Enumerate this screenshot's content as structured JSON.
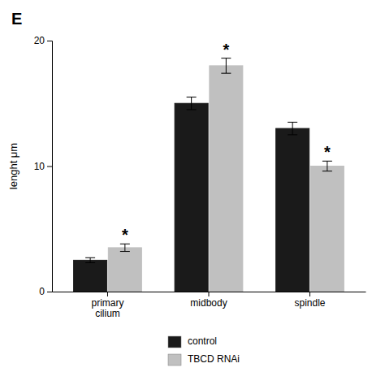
{
  "chart_data": {
    "type": "bar",
    "title": "E",
    "categories": [
      "primary\ncilium",
      "midbody",
      "spindle"
    ],
    "series": [
      {
        "name": "control",
        "color": "#1a1a1a",
        "values": [
          2.5,
          15.0,
          13.0
        ],
        "errors": [
          0.2,
          0.5,
          0.5
        ]
      },
      {
        "name": "TBCD RNAi",
        "color": "#c0c0c0",
        "values": [
          3.5,
          18.0,
          10.0
        ],
        "errors": [
          0.3,
          0.6,
          0.4
        ]
      }
    ],
    "ylabel": "lenght μm",
    "ylim": [
      0,
      20
    ],
    "yticks": [
      0,
      10,
      20
    ],
    "annotations": [
      {
        "text": "*",
        "category": "primary\ncilium",
        "series": "TBCD RNAi"
      },
      {
        "text": "*",
        "category": "midbody",
        "series": "TBCD RNAi"
      },
      {
        "text": "*",
        "category": "spindle",
        "series": "TBCD RNAi"
      }
    ],
    "legend": "bottom",
    "grid": false
  }
}
